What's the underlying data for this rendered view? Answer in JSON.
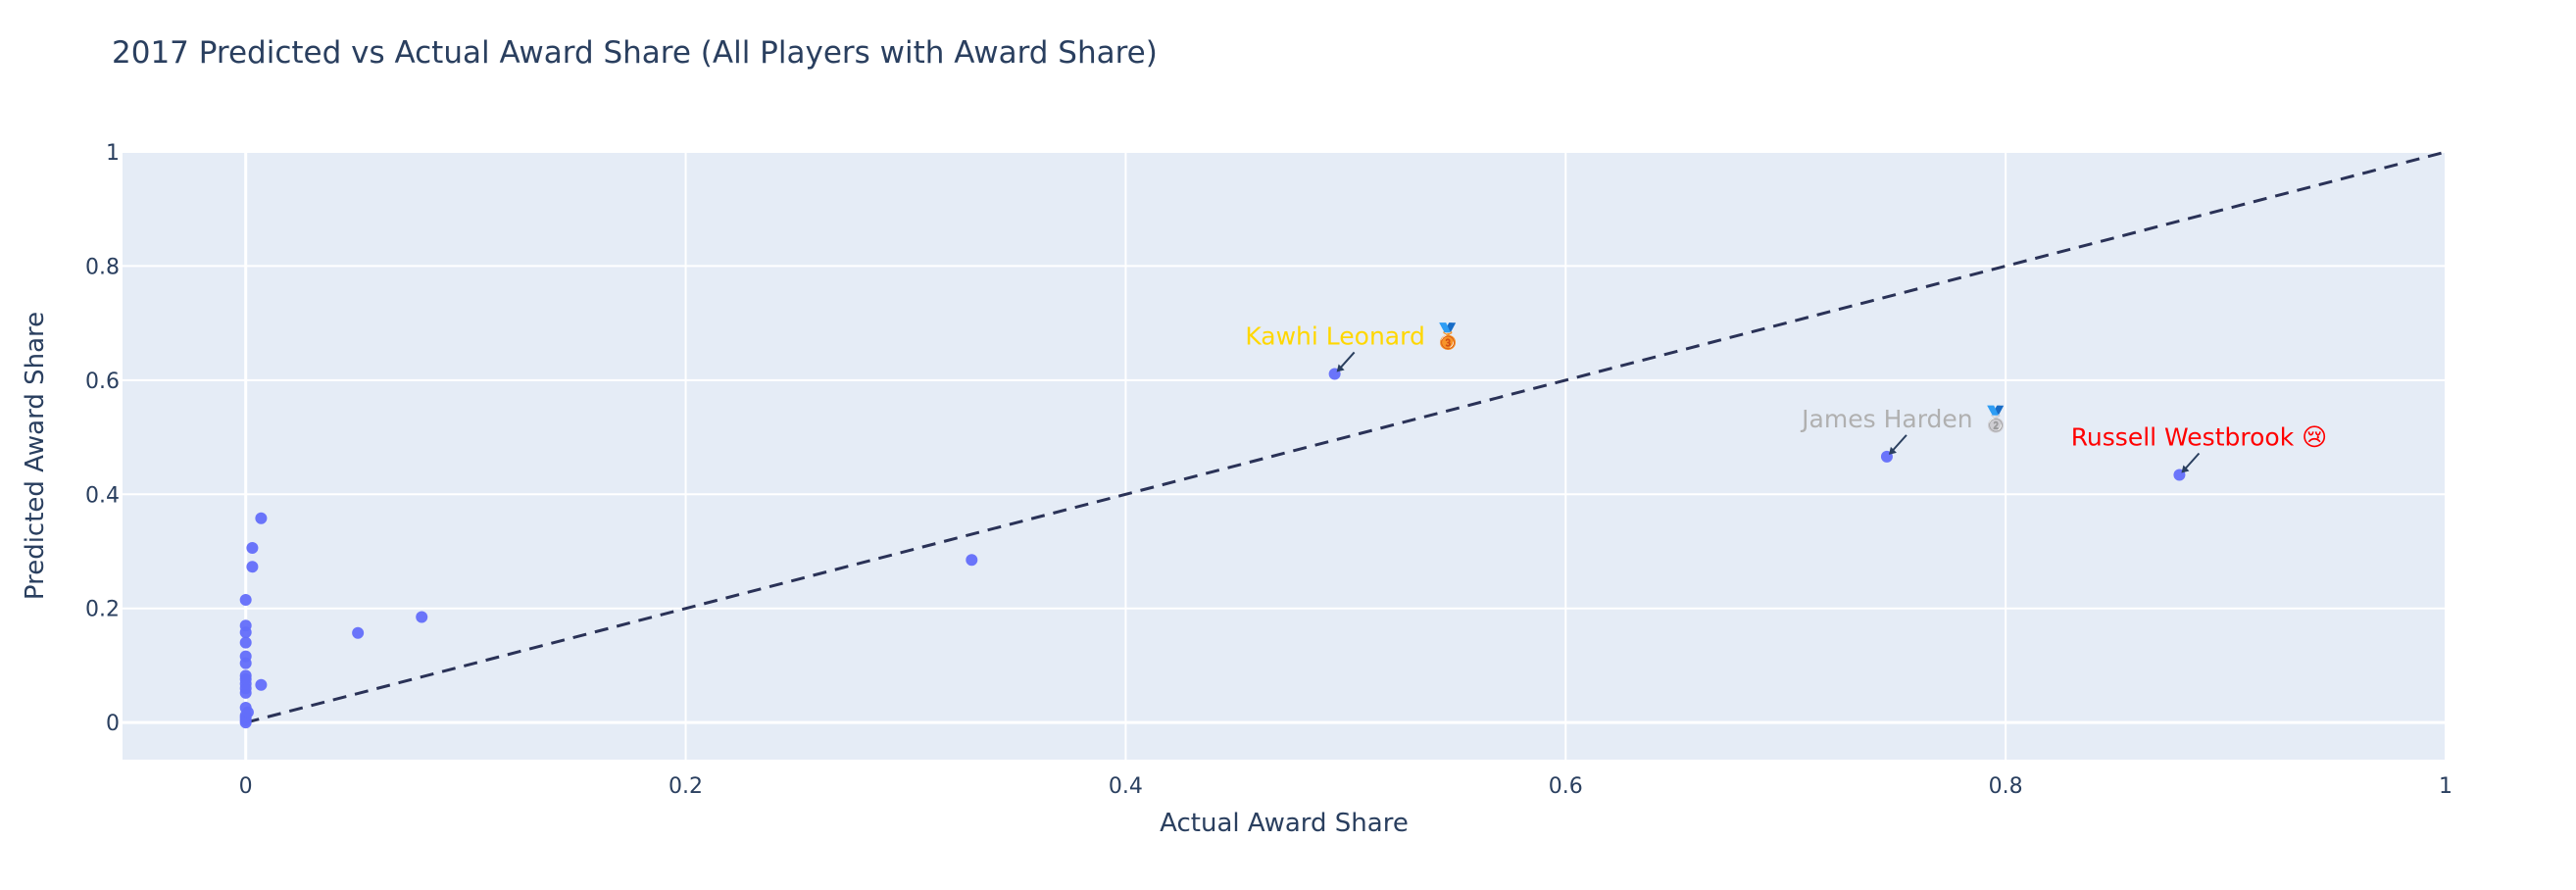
{
  "chart_data": {
    "type": "scatter",
    "title": "2017 Predicted vs Actual Award Share (All Players with Award Share)",
    "xlabel": "Actual Award Share",
    "ylabel": "Predicted Award Share",
    "xlim": [
      -0.056,
      1.0
    ],
    "ylim": [
      -0.065,
      1.0
    ],
    "x_ticks": [
      0,
      0.2,
      0.4,
      0.6,
      0.8,
      1
    ],
    "x_tick_labels": [
      "0",
      "0.2",
      "0.4",
      "0.6",
      "0.8",
      "1"
    ],
    "y_ticks": [
      0,
      0.2,
      0.4,
      0.6,
      0.8,
      1
    ],
    "y_tick_labels": [
      "0",
      "0.2",
      "0.4",
      "0.6",
      "0.8",
      "1"
    ],
    "grid": true,
    "colors": {
      "plot_bg": "#e5ecf6",
      "grid": "#ffffff",
      "marker": "#636efa",
      "diagonal": "#2a3257",
      "text": "#2a3f5f"
    },
    "reference_line": {
      "style": "dashed",
      "x": [
        0,
        1
      ],
      "y": [
        0,
        1
      ]
    },
    "points": [
      {
        "x": 0.0,
        "y": 0.0
      },
      {
        "x": 0.0,
        "y": 0.004
      },
      {
        "x": 0.0,
        "y": 0.008
      },
      {
        "x": 0.0,
        "y": 0.012
      },
      {
        "x": 0.001,
        "y": 0.018
      },
      {
        "x": 0.0,
        "y": 0.026
      },
      {
        "x": 0.0,
        "y": 0.052
      },
      {
        "x": 0.0,
        "y": 0.06
      },
      {
        "x": 0.0,
        "y": 0.068
      },
      {
        "x": 0.0,
        "y": 0.076
      },
      {
        "x": 0.0,
        "y": 0.082
      },
      {
        "x": 0.0,
        "y": 0.104
      },
      {
        "x": 0.0,
        "y": 0.116
      },
      {
        "x": 0.0,
        "y": 0.14
      },
      {
        "x": 0.0,
        "y": 0.158
      },
      {
        "x": 0.0,
        "y": 0.17
      },
      {
        "x": 0.0,
        "y": 0.215
      },
      {
        "x": 0.003,
        "y": 0.273
      },
      {
        "x": 0.003,
        "y": 0.306
      },
      {
        "x": 0.007,
        "y": 0.358
      },
      {
        "x": 0.007,
        "y": 0.066
      },
      {
        "x": 0.051,
        "y": 0.157
      },
      {
        "x": 0.08,
        "y": 0.185
      },
      {
        "x": 0.33,
        "y": 0.285
      },
      {
        "x": 0.495,
        "y": 0.611
      },
      {
        "x": 0.746,
        "y": 0.466
      },
      {
        "x": 0.879,
        "y": 0.434
      }
    ],
    "annotations": [
      {
        "text": "Kawhi Leonard 🥉",
        "x": 0.495,
        "y": 0.611,
        "color": "#ffd700",
        "medal": "bronze-medal-icon"
      },
      {
        "text": "James Harden 🥈",
        "x": 0.746,
        "y": 0.466,
        "color": "#b0b0b0",
        "medal": "silver-medal-icon"
      },
      {
        "text": "Russell Westbrook 😢",
        "x": 0.879,
        "y": 0.434,
        "color": "#ff0000",
        "medal": "crying-face-icon"
      }
    ]
  }
}
